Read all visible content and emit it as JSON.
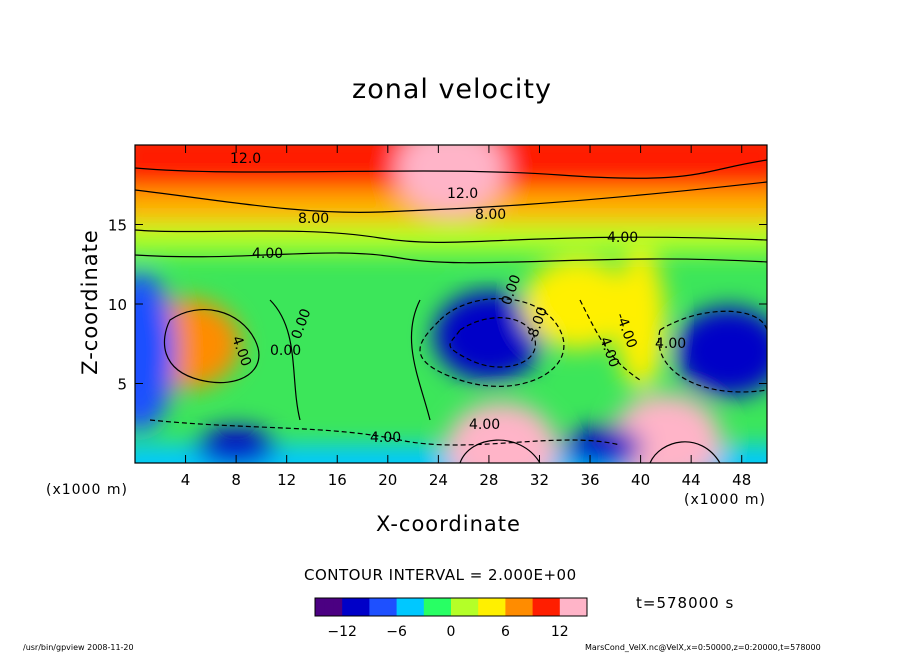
{
  "chart_data": {
    "type": "heatmap",
    "title": "zonal velocity",
    "xlabel": "X-coordinate",
    "ylabel": "Z-coordinate",
    "x_unit_label": "(x1000 m)",
    "xlim": [
      0,
      50
    ],
    "ylim": [
      0,
      20
    ],
    "x_ticks": [
      "4",
      "8",
      "12",
      "16",
      "20",
      "24",
      "28",
      "32",
      "36",
      "40",
      "44",
      "48"
    ],
    "y_ticks": [
      "5",
      "10",
      "15"
    ],
    "contour_interval_label": "CONTOUR INTERVAL = 2.000E+00",
    "contour_labels": [
      "12.0",
      "12.0",
      "8.00",
      "8.00",
      "4.00",
      "4.00",
      "4.00",
      "4.00",
      "4.00",
      "4.00",
      "4.00",
      "0.00",
      "0.00",
      "0.00",
      "-8.00",
      "-4.00"
    ],
    "colorbar": {
      "range": [
        -15,
        15
      ],
      "ticks": [
        "−12",
        "−6",
        "0",
        "6",
        "12"
      ],
      "colors": [
        "#4b0082",
        "#0000c8",
        "#1e50ff",
        "#00c8ff",
        "#28ff64",
        "#b4ff28",
        "#fff000",
        "#ff8c00",
        "#ff1e00",
        "#ffb4c8"
      ]
    },
    "time_label": "t=578000 s",
    "features": [
      {
        "x": 4,
        "z": 7.5,
        "value": 8
      },
      {
        "x": 28,
        "z": 8,
        "value": -12
      },
      {
        "x": 47,
        "z": 7,
        "value": -12
      },
      {
        "x": 29,
        "z": 1,
        "value": 12
      },
      {
        "x": 42,
        "z": 1.5,
        "value": 14
      },
      {
        "x": 35,
        "z": 10,
        "value": 4
      },
      {
        "x": 25,
        "z": 18.5,
        "value": 14
      }
    ]
  },
  "footer": {
    "left": "/usr/bin/gpview   2008-11-20",
    "right": "MarsCond_VelX.nc@VelX,x=0:50000,z=0:20000,t=578000"
  }
}
